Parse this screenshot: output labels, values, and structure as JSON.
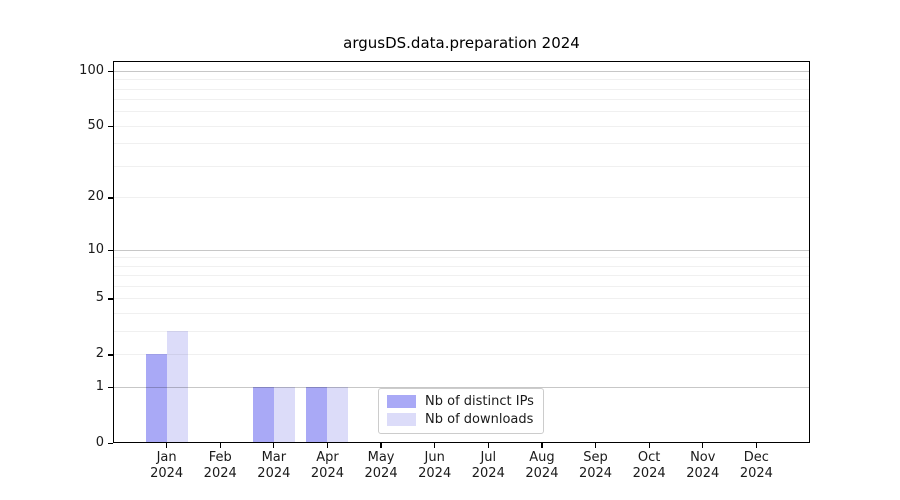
{
  "title": "argusDS.data.preparation 2024",
  "chart_data": {
    "type": "bar",
    "title": "argusDS.data.preparation 2024",
    "categories": [
      "Jan",
      "Feb",
      "Mar",
      "Apr",
      "May",
      "Jun",
      "Jul",
      "Aug",
      "Sep",
      "Oct",
      "Nov",
      "Dec"
    ],
    "category_sublabel": "2024",
    "series": [
      {
        "name": "Nb of distinct IPs",
        "color": "#a9a9f6",
        "values": [
          2,
          0,
          1,
          1,
          0,
          0,
          0,
          0,
          0,
          0,
          0,
          0
        ]
      },
      {
        "name": "Nb of downloads",
        "color": "#dcdcf9",
        "values": [
          3,
          0,
          1,
          1,
          0,
          0,
          0,
          0,
          0,
          0,
          0,
          0
        ]
      }
    ],
    "yscale": "log1p",
    "ylim": [
      0,
      113
    ],
    "yticks": [
      0,
      1,
      2,
      5,
      10,
      20,
      50,
      100
    ],
    "ytick_labels": [
      "0",
      "1",
      "2",
      "5",
      "10",
      "20",
      "50",
      "100"
    ],
    "major_gridlines": [
      1,
      10,
      100
    ],
    "minor_gridlines": [
      2,
      3,
      4,
      5,
      6,
      7,
      8,
      9,
      20,
      30,
      40,
      50,
      60,
      70,
      80,
      90
    ],
    "grid": "horizontal",
    "legend_position": "inside-bottom-center"
  }
}
